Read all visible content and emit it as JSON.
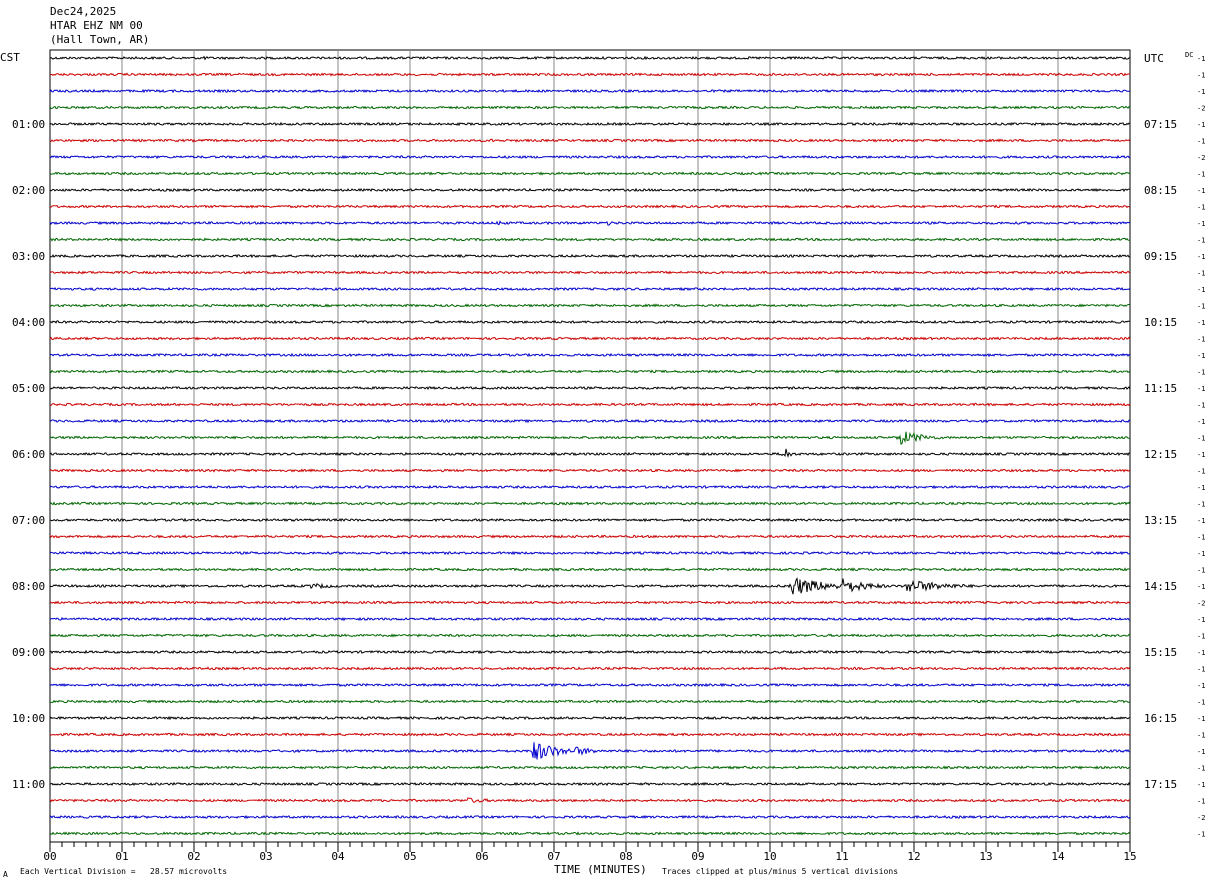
{
  "header": {
    "date": "Dec24,2025",
    "station": "HTAR EHZ NM 00",
    "location": "(Hall Town, AR)"
  },
  "chart_data": {
    "type": "line",
    "title": "",
    "left_axis_label": "CST",
    "right_axis_label": "UTC",
    "dc_label": "DC",
    "xlabel": "TIME (MINUTES)",
    "x_ticks": [
      "00",
      "01",
      "02",
      "03",
      "04",
      "05",
      "06",
      "07",
      "08",
      "09",
      "10",
      "11",
      "12",
      "13",
      "14",
      "15"
    ],
    "xlim": [
      0,
      15
    ],
    "trace_count": 48,
    "trace_colors": [
      "#000000",
      "#cc0000",
      "#0000cc",
      "#006600"
    ],
    "left_hour_labels": [
      {
        "trace": 4,
        "label": "01:00"
      },
      {
        "trace": 8,
        "label": "02:00"
      },
      {
        "trace": 12,
        "label": "03:00"
      },
      {
        "trace": 16,
        "label": "04:00"
      },
      {
        "trace": 20,
        "label": "05:00"
      },
      {
        "trace": 24,
        "label": "06:00"
      },
      {
        "trace": 28,
        "label": "07:00"
      },
      {
        "trace": 32,
        "label": "08:00"
      },
      {
        "trace": 36,
        "label": "09:00"
      },
      {
        "trace": 40,
        "label": "10:00"
      },
      {
        "trace": 44,
        "label": "11:00"
      }
    ],
    "right_hour_labels": [
      {
        "trace": 0,
        "label": "UTC"
      },
      {
        "trace": 4,
        "label": "07:15"
      },
      {
        "trace": 8,
        "label": "08:15"
      },
      {
        "trace": 12,
        "label": "09:15"
      },
      {
        "trace": 16,
        "label": "10:15"
      },
      {
        "trace": 20,
        "label": "11:15"
      },
      {
        "trace": 24,
        "label": "12:15"
      },
      {
        "trace": 28,
        "label": "13:15"
      },
      {
        "trace": 32,
        "label": "14:15"
      },
      {
        "trace": 36,
        "label": "15:15"
      },
      {
        "trace": 40,
        "label": "16:15"
      },
      {
        "trace": 44,
        "label": "17:15"
      }
    ],
    "dc_offsets": [
      "-1",
      "-1",
      "-1",
      "-2",
      "-1",
      "-1",
      "-2",
      "-1",
      "-1",
      "-1",
      "-1",
      "-1",
      "-1",
      "-1",
      "-1",
      "-1",
      "-1",
      "-1",
      "-1",
      "-1",
      "-1",
      "-1",
      "-1",
      "-1",
      "-1",
      "-1",
      "-1",
      "-1",
      "-1",
      "-1",
      "-1",
      "-1",
      "-1",
      "-2",
      "-1",
      "-1",
      "-1",
      "-1",
      "-1",
      "-1",
      "-1",
      "-1",
      "-1",
      "-1",
      "-1",
      "-1",
      "-2",
      "-1"
    ],
    "events": [
      {
        "trace": 0,
        "minute": 2.1,
        "amplitude": 3,
        "duration": 0.2
      },
      {
        "trace": 5,
        "minute": 6.1,
        "amplitude": 2.5,
        "duration": 0.2
      },
      {
        "trace": 10,
        "minute": 6.2,
        "amplitude": 3,
        "duration": 0.4
      },
      {
        "trace": 10,
        "minute": 7.75,
        "amplitude": 2.5,
        "duration": 0.3
      },
      {
        "trace": 23,
        "minute": 11.8,
        "amplitude": 8,
        "duration": 0.7
      },
      {
        "trace": 24,
        "minute": 10.2,
        "amplitude": 9,
        "duration": 0.15
      },
      {
        "trace": 32,
        "minute": 3.6,
        "amplitude": 3,
        "duration": 0.9
      },
      {
        "trace": 32,
        "minute": 10.3,
        "amplitude": 10,
        "duration": 1.1
      },
      {
        "trace": 32,
        "minute": 11.0,
        "amplitude": 8,
        "duration": 0.8
      },
      {
        "trace": 32,
        "minute": 11.9,
        "amplitude": 7,
        "duration": 1.2
      },
      {
        "trace": 42,
        "minute": 6.7,
        "amplitude": 11,
        "duration": 0.8
      },
      {
        "trace": 42,
        "minute": 7.3,
        "amplitude": 5,
        "duration": 0.6
      },
      {
        "trace": 45,
        "minute": 5.8,
        "amplitude": 3,
        "duration": 0.8
      }
    ]
  },
  "footer": {
    "scale_note": "Each Vertical Division =   28.57 microvolts",
    "clip_note": "Traces clipped at plus/minus 5 vertical divisions",
    "corner_mark": "A"
  }
}
